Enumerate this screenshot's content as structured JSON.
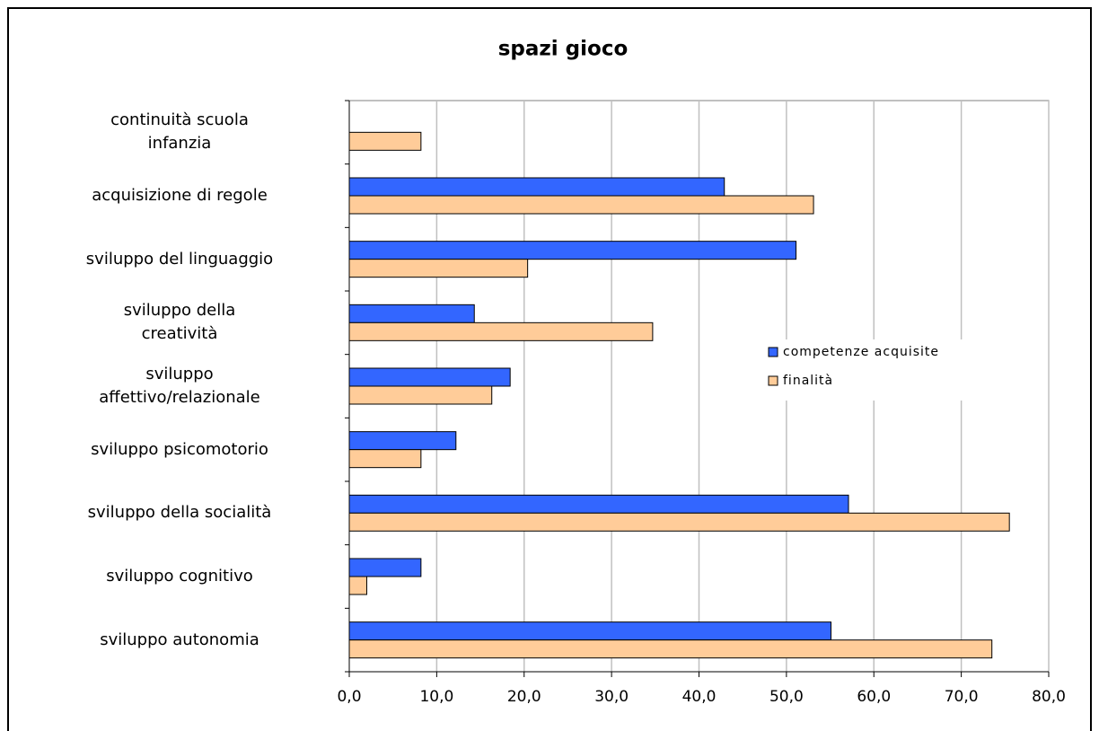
{
  "chart_data": {
    "type": "bar",
    "orientation": "horizontal",
    "title": "spazi gioco",
    "categories": [
      "continuità scuola\ninfanzia",
      "acquisizione di regole",
      "sviluppo del linguaggio",
      "sviluppo della\ncreatività",
      "sviluppo\naffettivo/relazionale",
      "sviluppo psicomotorio",
      "sviluppo della socialità",
      "sviluppo cognitivo",
      "sviluppo autonomia"
    ],
    "series": [
      {
        "name": "competenze acquisite",
        "color": "#3366ff",
        "values": [
          null,
          42.9,
          51.1,
          14.3,
          18.4,
          12.2,
          57.1,
          8.2,
          55.1
        ]
      },
      {
        "name": "finalità",
        "color": "#ffcc99",
        "values": [
          8.2,
          53.1,
          20.4,
          34.7,
          16.3,
          8.2,
          75.5,
          2.0,
          73.5
        ]
      }
    ],
    "xlim": [
      0,
      80
    ],
    "xticks": [
      {
        "value": 0,
        "label": "0,0"
      },
      {
        "value": 10,
        "label": "10,0"
      },
      {
        "value": 20,
        "label": "20,0"
      },
      {
        "value": 30,
        "label": "30,0"
      },
      {
        "value": 40,
        "label": "40,0"
      },
      {
        "value": 50,
        "label": "50,0"
      },
      {
        "value": 60,
        "label": "60,0"
      },
      {
        "value": 70,
        "label": "70,0"
      },
      {
        "value": 80,
        "label": "80,0"
      }
    ],
    "grid": true,
    "legend": "right"
  }
}
